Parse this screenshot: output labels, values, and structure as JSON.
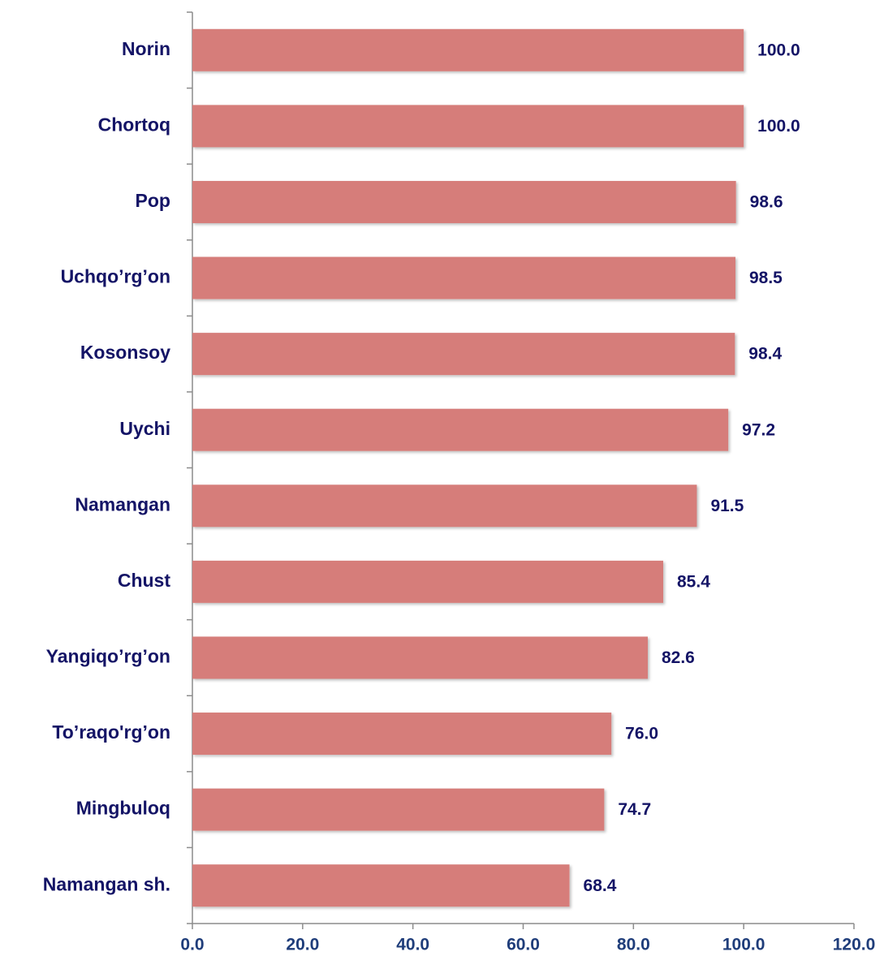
{
  "chart_data": {
    "type": "bar",
    "orientation": "horizontal",
    "categories": [
      "Norin",
      "Chortoq",
      "Pop",
      "Uchqo’rg’on",
      "Kosonsoy",
      "Uychi",
      "Namangan",
      "Chust",
      "Yangiqo’rg’on",
      "To’raqo'rg’on",
      "Mingbuloq",
      "Namangan sh."
    ],
    "values": [
      100.0,
      100.0,
      98.6,
      98.5,
      98.4,
      97.2,
      91.5,
      85.4,
      82.6,
      76.0,
      74.7,
      68.4
    ],
    "value_labels": [
      "100.0",
      "100.0",
      "98.6",
      "98.5",
      "98.4",
      "97.2",
      "91.5",
      "85.4",
      "82.6",
      "76.0",
      "74.7",
      "68.4"
    ],
    "color": "#d67d7a",
    "xlim": [
      0,
      120
    ],
    "xticks": [
      {
        "value": 0,
        "label": "0.0"
      },
      {
        "value": 20,
        "label": "20.0"
      },
      {
        "value": 40,
        "label": "40.0"
      },
      {
        "value": 60,
        "label": "60.0"
      },
      {
        "value": 80,
        "label": "80.0"
      },
      {
        "value": 100,
        "label": "100.0"
      },
      {
        "value": 120,
        "label": "120.0"
      }
    ],
    "grid": false
  }
}
